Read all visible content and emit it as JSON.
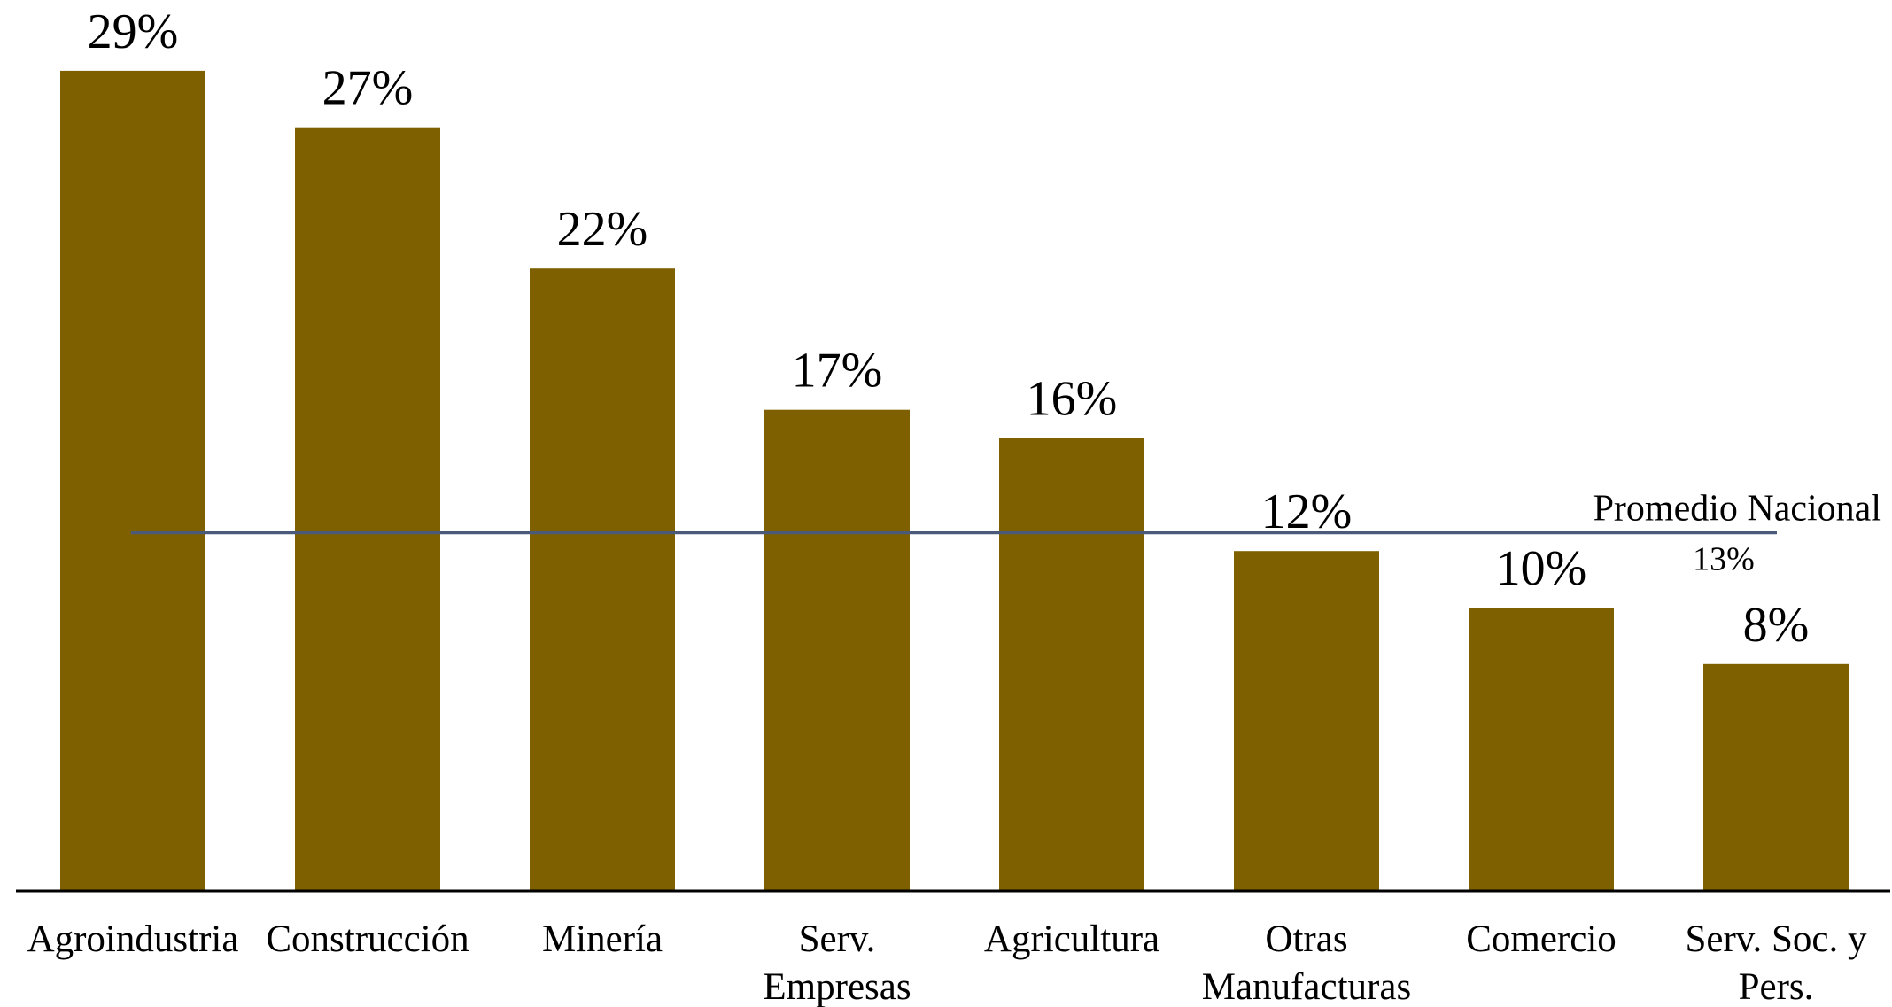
{
  "chart_data": {
    "type": "bar",
    "categories": [
      [
        "Agroindustria"
      ],
      [
        "Construcción"
      ],
      [
        "Minería"
      ],
      [
        "Serv.",
        "Empresas"
      ],
      [
        "Agricultura"
      ],
      [
        "Otras",
        "Manufacturas"
      ],
      [
        "Comercio"
      ],
      [
        "Serv. Soc. y",
        "Pers."
      ]
    ],
    "values": [
      29,
      27,
      22,
      17,
      16,
      12,
      10,
      8
    ],
    "value_labels": [
      "29%",
      "27%",
      "22%",
      "17%",
      "16%",
      "12%",
      "10%",
      "8%"
    ],
    "reference_line": {
      "label": "Promedio Nacional",
      "value": 13,
      "value_label": "13%",
      "color": "#4a5a78"
    },
    "bar_color": "#7f6000",
    "axis_color": "#000000",
    "ylim": [
      0,
      30
    ],
    "grid": false,
    "title": "",
    "xlabel": "",
    "ylabel": ""
  }
}
